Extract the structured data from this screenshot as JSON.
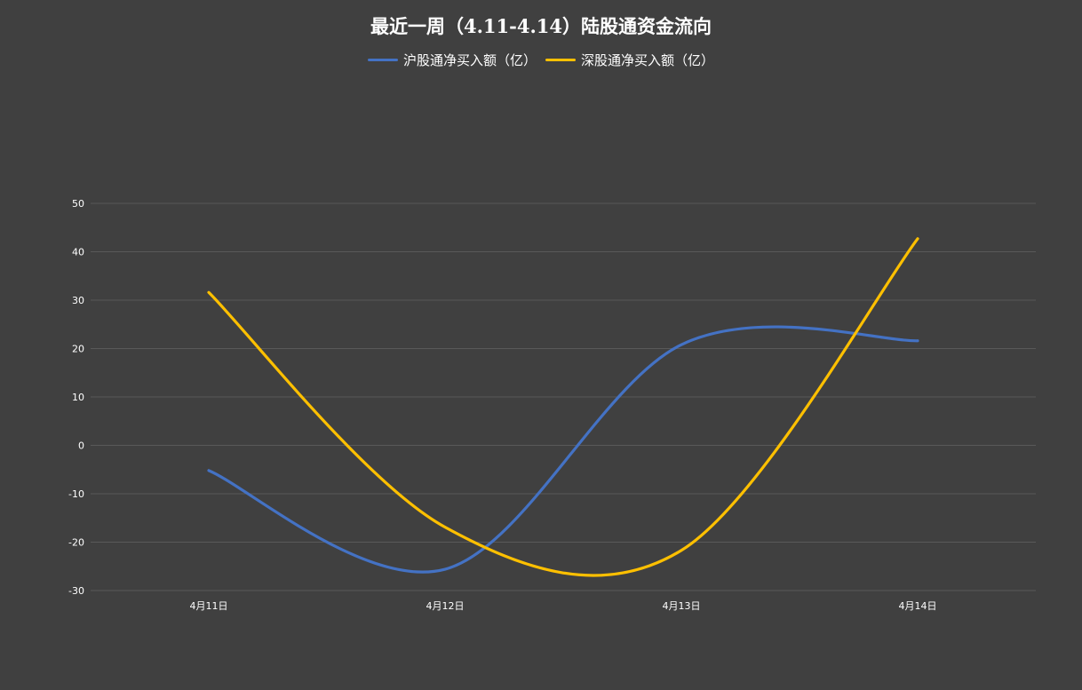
{
  "chart_data": {
    "type": "line",
    "title": "最近一周（4.11-4.14）陆股通资金流向",
    "categories": [
      "4月11日",
      "4月12日",
      "4月13日",
      "4月14日"
    ],
    "series": [
      {
        "name": "沪股通净买入额（亿）",
        "color": "#4472C4",
        "values": [
          -5.2,
          -25.6,
          20.8,
          21.6
        ]
      },
      {
        "name": "深股通净买入额（亿）",
        "color": "#FFC000",
        "values": [
          31.6,
          -16.9,
          -21.7,
          42.7
        ]
      }
    ],
    "ylim": [
      -30,
      50
    ],
    "yticks": [
      "50",
      "40",
      "30",
      "20",
      "10",
      "0",
      "-10",
      "-20",
      "-30"
    ],
    "grid": true,
    "legend": "top",
    "colors": {
      "background": "#404040",
      "gridline": "#595959",
      "text": "#FFFFFF"
    }
  }
}
